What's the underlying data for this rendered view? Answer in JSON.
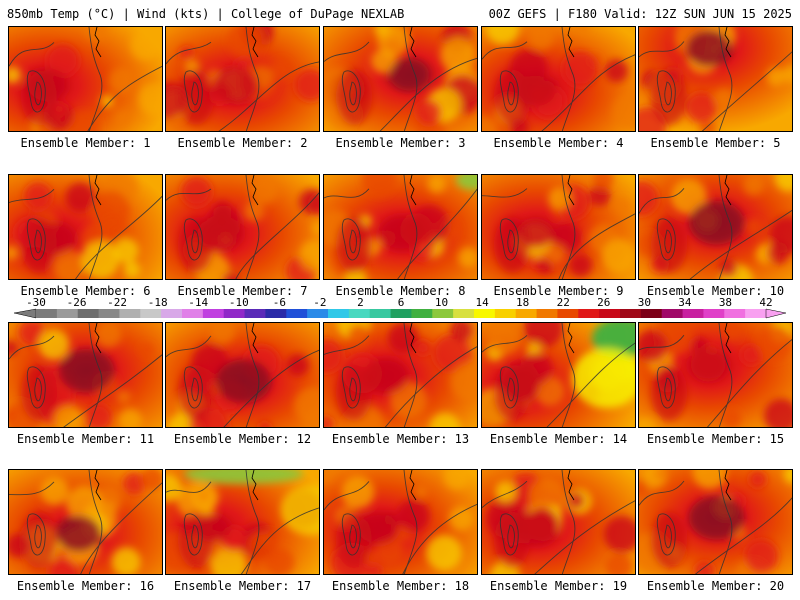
{
  "header": {
    "left": "850mb Temp (°C) | Wind (kts) | College of DuPage NEXLAB",
    "right": "00Z GEFS | F180 Valid: 12Z SUN JUN 15 2025"
  },
  "colorbar": {
    "labels": [
      "-30",
      "-26",
      "-22",
      "-18",
      "-14",
      "-10",
      "-6",
      "-2",
      "2",
      "6",
      "10",
      "14",
      "18",
      "22",
      "26",
      "30",
      "34",
      "38",
      "42"
    ],
    "colors": [
      "#7b7b7b",
      "#9a9a9a",
      "#6e6e6e",
      "#888888",
      "#b0b0b0",
      "#c8c8c8",
      "#d8a8e8",
      "#e080e8",
      "#c040e0",
      "#9028c8",
      "#5a2ab8",
      "#2a2aa8",
      "#2050d8",
      "#2a8ae8",
      "#30c8e8",
      "#48d8c0",
      "#38c8a0",
      "#20a060",
      "#40b040",
      "#8cc83c",
      "#d8e040",
      "#f8f800",
      "#f8d000",
      "#f8a800",
      "#f07800",
      "#e84800",
      "#e01818",
      "#c80818",
      "#a00818",
      "#7c0018",
      "#a00868",
      "#c820a0",
      "#e040c8",
      "#f070e0",
      "#f8a0f0"
    ]
  },
  "members": [
    {
      "label": "Ensemble Member: 1"
    },
    {
      "label": "Ensemble Member: 2"
    },
    {
      "label": "Ensemble Member: 3"
    },
    {
      "label": "Ensemble Member: 4"
    },
    {
      "label": "Ensemble Member: 5"
    },
    {
      "label": "Ensemble Member: 6"
    },
    {
      "label": "Ensemble Member: 7"
    },
    {
      "label": "Ensemble Member: 8"
    },
    {
      "label": "Ensemble Member: 9"
    },
    {
      "label": "Ensemble Member: 10"
    },
    {
      "label": "Ensemble Member: 11"
    },
    {
      "label": "Ensemble Member: 12"
    },
    {
      "label": "Ensemble Member: 13"
    },
    {
      "label": "Ensemble Member: 14"
    },
    {
      "label": "Ensemble Member: 15"
    },
    {
      "label": "Ensemble Member: 16"
    },
    {
      "label": "Ensemble Member: 17"
    },
    {
      "label": "Ensemble Member: 18"
    },
    {
      "label": "Ensemble Member: 19"
    },
    {
      "label": "Ensemble Member: 20"
    }
  ]
}
